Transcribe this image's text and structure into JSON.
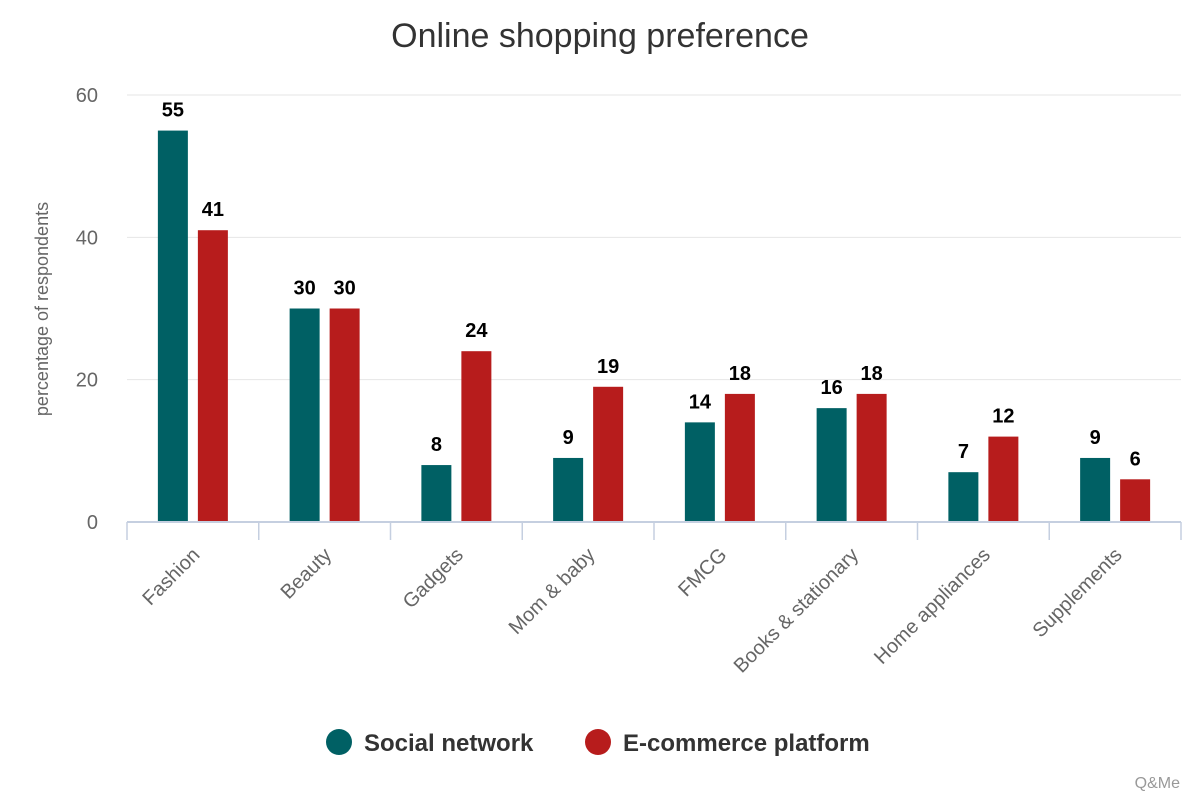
{
  "chart_data": {
    "type": "bar",
    "title": "Online shopping preference",
    "ylabel": "percentage of respondents",
    "xlabel": "",
    "categories": [
      "Fashion",
      "Beauty",
      "Gadgets",
      "Mom & baby",
      "FMCG",
      "Books & stationary",
      "Home appliances",
      "Supplements"
    ],
    "series": [
      {
        "name": "Social network",
        "color": "#006064",
        "values": [
          55,
          30,
          8,
          9,
          14,
          16,
          7,
          9
        ]
      },
      {
        "name": "E-commerce platform",
        "color": "#b71c1c",
        "values": [
          41,
          30,
          24,
          19,
          18,
          18,
          12,
          6
        ]
      }
    ],
    "ylim": [
      0,
      60
    ],
    "yticks": [
      0,
      20,
      40,
      60
    ],
    "grid": true,
    "legend_position": "bottom",
    "credit": "Q&Me"
  }
}
